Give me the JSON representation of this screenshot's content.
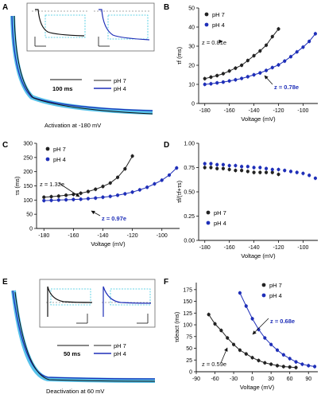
{
  "panels": {
    "A": {
      "letter": "A",
      "caption": "Activation at -180 mV",
      "scale": "100 ms",
      "legend": [
        {
          "name": "pH 7",
          "color": "#222222"
        },
        {
          "name": "pH 4",
          "color": "#1f2fb8"
        }
      ]
    },
    "E": {
      "letter": "E",
      "caption": "Deactivation at 60 mV",
      "scale": "50 ms",
      "legend": [
        {
          "name": "pH 7",
          "color": "#222222"
        },
        {
          "name": "pH 4",
          "color": "#1f2fb8"
        }
      ]
    }
  },
  "colors": {
    "ph7": "#222222",
    "ph4": "#1f2fb8",
    "trace_fill": "#3ab7e6",
    "inset_box": "#38c8e0"
  },
  "chart_data": [
    {
      "panel": "B",
      "type": "line",
      "xlabel": "Voltage (mV)",
      "ylabel": "τf (ms)",
      "xlim": [
        -185,
        -88
      ],
      "ylim": [
        0,
        50
      ],
      "xticks": [
        "-180",
        "-160",
        "-140",
        "-120",
        "-100"
      ],
      "yticks": [
        "0",
        "10",
        "20",
        "30",
        "40",
        "50"
      ],
      "legend_position": "top-left",
      "series": [
        {
          "name": "pH 7",
          "x": [
            -180,
            -175,
            -170,
            -165,
            -160,
            -155,
            -150,
            -145,
            -140,
            -135,
            -130,
            -125,
            -120
          ],
          "y": [
            13,
            13.8,
            14.6,
            15.6,
            17,
            18.5,
            20,
            22.5,
            25,
            27.5,
            30.5,
            35,
            39
          ]
        },
        {
          "name": "pH 4",
          "x": [
            -180,
            -175,
            -170,
            -165,
            -160,
            -155,
            -150,
            -145,
            -140,
            -135,
            -130,
            -125,
            -120,
            -115,
            -110,
            -105,
            -100,
            -95,
            -90
          ],
          "y": [
            10,
            10.3,
            10.8,
            11.2,
            11.8,
            12.4,
            13.1,
            14,
            15,
            16,
            17.3,
            18.8,
            20.2,
            22.2,
            24.5,
            27,
            29.5,
            32.5,
            36.5
          ]
        }
      ],
      "annotations": [
        {
          "text": "z = 0.81e",
          "series": "pH 7"
        },
        {
          "text": "z = 0.78e",
          "series": "pH 4"
        }
      ]
    },
    {
      "panel": "C",
      "type": "line",
      "xlabel": "Voltage (mV)",
      "ylabel": "τs (ms)",
      "xlim": [
        -185,
        -88
      ],
      "ylim": [
        0,
        300
      ],
      "xticks": [
        "-180",
        "-160",
        "-140",
        "-120",
        "-100"
      ],
      "yticks": [
        "0",
        "50",
        "100",
        "150",
        "200",
        "250",
        "300"
      ],
      "legend_position": "top-left",
      "series": [
        {
          "name": "pH 7",
          "x": [
            -180,
            -175,
            -170,
            -165,
            -160,
            -155,
            -150,
            -145,
            -140,
            -135,
            -130,
            -125,
            -120
          ],
          "y": [
            110,
            112,
            114,
            117,
            120,
            124,
            130,
            138,
            148,
            160,
            180,
            210,
            255
          ]
        },
        {
          "name": "pH 4",
          "x": [
            -180,
            -175,
            -170,
            -165,
            -160,
            -155,
            -150,
            -145,
            -140,
            -135,
            -130,
            -125,
            -120,
            -115,
            -110,
            -105,
            -100,
            -95,
            -90
          ],
          "y": [
            98,
            99,
            100,
            101,
            102,
            103,
            105,
            107,
            110,
            113,
            117,
            122,
            128,
            136,
            145,
            157,
            170,
            188,
            213
          ]
        }
      ],
      "annotations": [
        {
          "text": "z = 1.32e",
          "series": "pH 7"
        },
        {
          "text": "z = 0.97e",
          "series": "pH 4"
        }
      ]
    },
    {
      "panel": "D",
      "type": "scatter",
      "xlabel": "Voltage (mV)",
      "ylabel": "τf/(τf+τs)",
      "xlim": [
        -185,
        -88
      ],
      "ylim": [
        0,
        1.0
      ],
      "xticks": [
        "-180",
        "-160",
        "-140",
        "-120",
        "-100"
      ],
      "yticks": [
        "0.00",
        "0.25",
        "0.50",
        "0.75",
        "1.00"
      ],
      "legend_position": "bottom-left",
      "series": [
        {
          "name": "pH 7",
          "x": [
            -180,
            -175,
            -170,
            -165,
            -160,
            -155,
            -150,
            -145,
            -140,
            -135,
            -130,
            -125,
            -120
          ],
          "y": [
            0.75,
            0.75,
            0.74,
            0.74,
            0.73,
            0.72,
            0.72,
            0.71,
            0.7,
            0.7,
            0.7,
            0.7,
            0.68
          ]
        },
        {
          "name": "pH 4",
          "x": [
            -180,
            -175,
            -170,
            -165,
            -160,
            -155,
            -150,
            -145,
            -140,
            -135,
            -130,
            -125,
            -120,
            -115,
            -110,
            -105,
            -100,
            -95,
            -90
          ],
          "y": [
            0.79,
            0.79,
            0.78,
            0.78,
            0.77,
            0.77,
            0.76,
            0.76,
            0.75,
            0.75,
            0.74,
            0.73,
            0.73,
            0.72,
            0.71,
            0.7,
            0.69,
            0.67,
            0.64
          ]
        }
      ]
    },
    {
      "panel": "F",
      "type": "line",
      "xlabel": "Voltage (mV)",
      "ylabel": "τdeact (ms)",
      "xlim": [
        -90,
        105
      ],
      "ylim": [
        0,
        190
      ],
      "xticks": [
        "-90",
        "-60",
        "-30",
        "0",
        "30",
        "60",
        "90"
      ],
      "yticks": [
        "0",
        "25",
        "50",
        "75",
        "100",
        "125",
        "150",
        "175"
      ],
      "legend_position": "top-right",
      "series": [
        {
          "name": "pH 7",
          "x": [
            -70,
            -60,
            -50,
            -40,
            -30,
            -20,
            -10,
            0,
            10,
            20,
            30,
            40,
            50,
            60,
            70
          ],
          "y": [
            122,
            102,
            88,
            72,
            58,
            46,
            38,
            30,
            24,
            19,
            16,
            13,
            11,
            10,
            9
          ]
        },
        {
          "name": "pH 4",
          "x": [
            -20,
            -10,
            0,
            10,
            20,
            30,
            40,
            50,
            60,
            70,
            80,
            90,
            100
          ],
          "y": [
            168,
            140,
            113,
            90,
            72,
            58,
            46,
            36,
            28,
            21,
            16,
            13,
            11
          ]
        }
      ],
      "annotations": [
        {
          "text": "z = 0.59e",
          "series": "pH 7"
        },
        {
          "text": "z = 0.68e",
          "series": "pH 4"
        }
      ]
    }
  ]
}
